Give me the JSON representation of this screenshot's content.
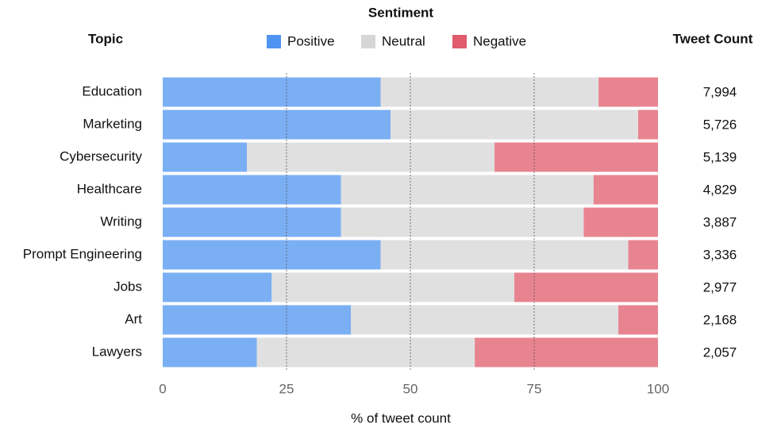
{
  "chart_data": {
    "type": "stacked-bar-horizontal",
    "legend_title": "Sentiment",
    "category_header": "Topic",
    "xlabel": "% of tweet count",
    "categories": [
      "Education",
      "Marketing",
      "Cybersecurity",
      "Healthcare",
      "Writing",
      "Prompt Engineering",
      "Jobs",
      "Art",
      "Lawyers"
    ],
    "series": [
      {
        "name": "Positive",
        "color": "#4f94f0",
        "values": [
          44,
          46,
          17,
          36,
          36,
          44,
          22,
          38,
          19
        ]
      },
      {
        "name": "Neutral",
        "color": "#d6d6d6",
        "values": [
          44,
          50,
          50,
          51,
          49,
          50,
          49,
          54,
          44
        ]
      },
      {
        "name": "Negative",
        "color": "#e05b6b",
        "values": [
          12,
          4,
          33,
          13,
          15,
          6,
          29,
          8,
          37
        ]
      }
    ],
    "tweet_count": {
      "title": "Tweet Count",
      "values": [
        7994,
        5726,
        5139,
        4829,
        3887,
        3336,
        2977,
        2168,
        2057
      ],
      "value_labels": [
        "7,994",
        "5,726",
        "5,139",
        "4,829",
        "3,887",
        "3,336",
        "2,977",
        "2,168",
        "2,057"
      ]
    },
    "xlim": [
      0,
      100
    ],
    "xticks": [
      0,
      25,
      50,
      75,
      100
    ],
    "grid": true
  }
}
